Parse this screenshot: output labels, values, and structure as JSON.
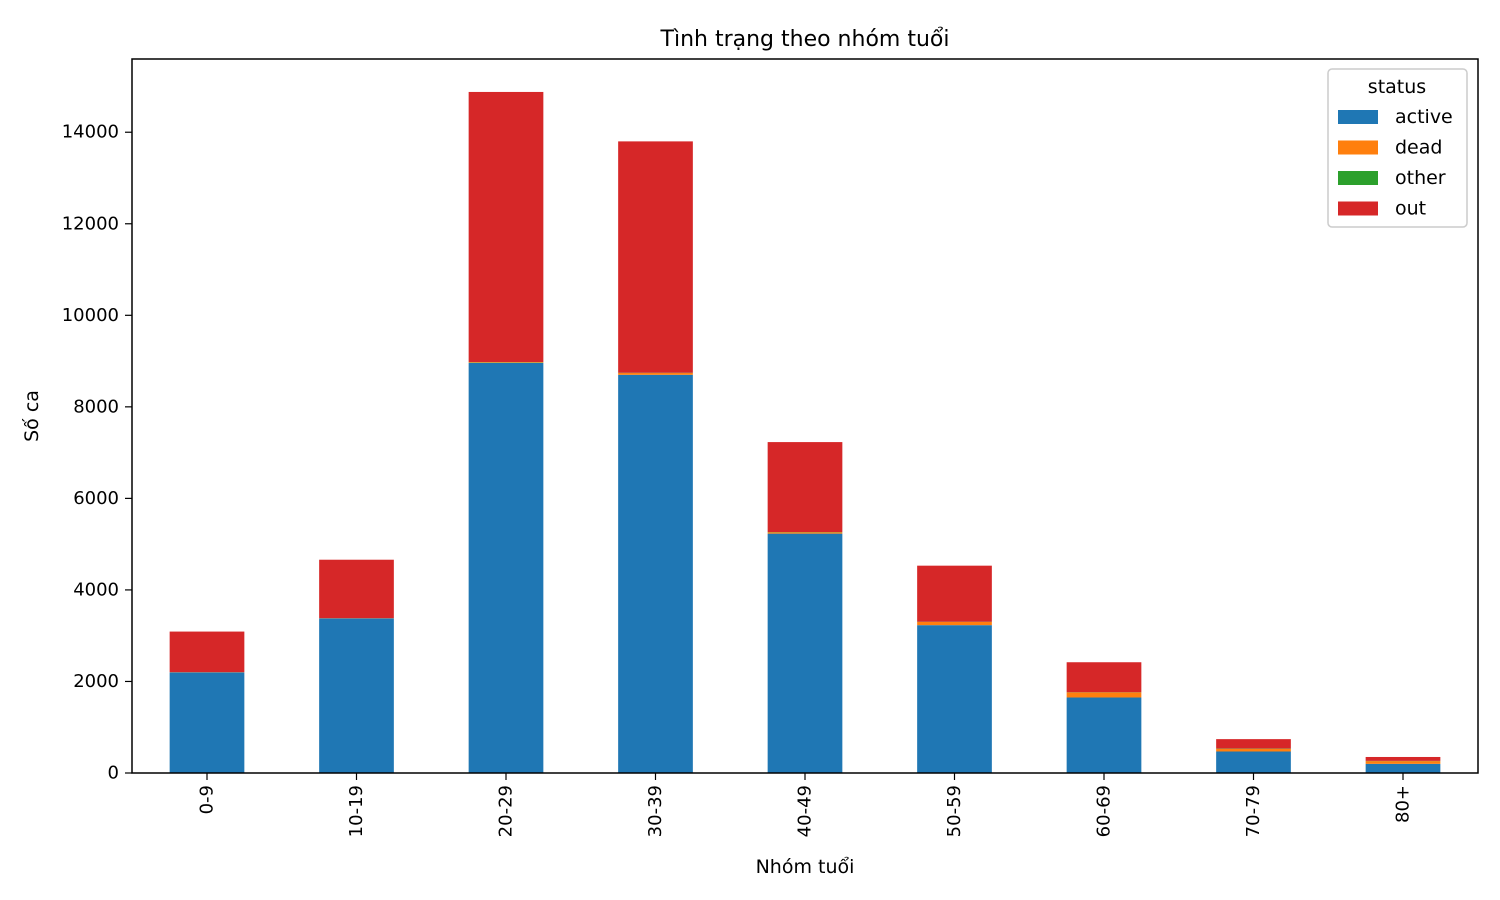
{
  "chart_data": {
    "type": "bar",
    "stacked": true,
    "title": "Tình trạng theo nhóm tuổi",
    "xlabel": "Nhóm tuổi",
    "ylabel": "Số ca",
    "ylim": [
      0,
      15600
    ],
    "yticks": [
      0,
      2000,
      4000,
      6000,
      8000,
      10000,
      12000,
      14000
    ],
    "grid": false,
    "legend": {
      "title": "status",
      "position": "top-right"
    },
    "categories": [
      "0-9",
      "10-19",
      "20-29",
      "30-39",
      "40-49",
      "50-59",
      "60-69",
      "70-79",
      "80+"
    ],
    "series": [
      {
        "name": "active",
        "color": "#1f77b4",
        "values": [
          2200,
          3380,
          8960,
          8700,
          5230,
          3230,
          1650,
          470,
          200
        ]
      },
      {
        "name": "dead",
        "color": "#ff7f0e",
        "values": [
          5,
          5,
          15,
          40,
          30,
          70,
          110,
          60,
          60
        ]
      },
      {
        "name": "other",
        "color": "#2ca02c",
        "values": [
          0,
          0,
          5,
          5,
          5,
          5,
          5,
          5,
          5
        ]
      },
      {
        "name": "out",
        "color": "#d62728",
        "values": [
          885,
          1275,
          5900,
          5055,
          1965,
          1225,
          655,
          205,
          85
        ]
      }
    ]
  }
}
